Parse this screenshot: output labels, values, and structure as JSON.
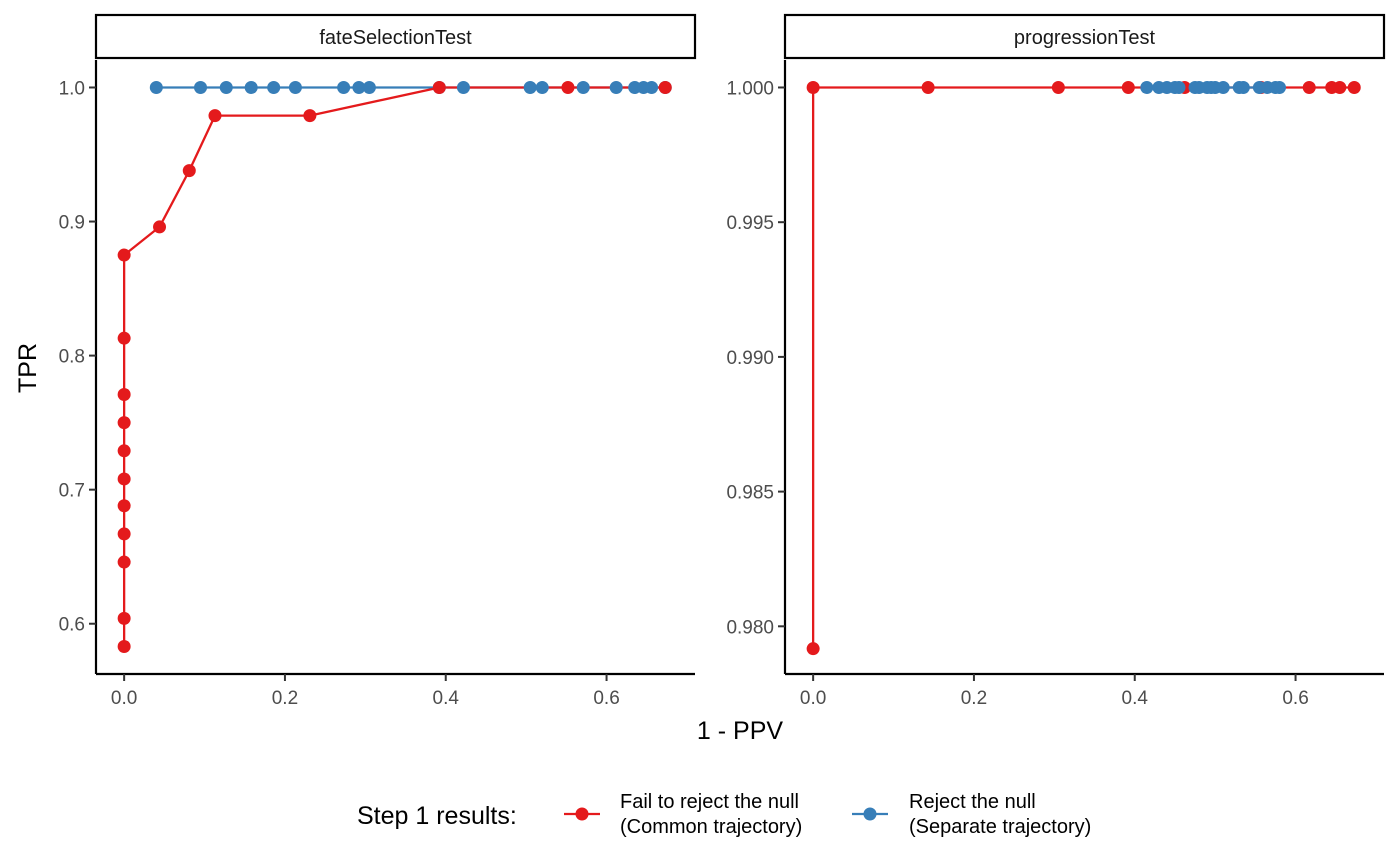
{
  "chart_data": [
    {
      "type": "line",
      "title": "fateSelectionTest",
      "xlabel": "1 - PPV",
      "ylabel": "TPR",
      "xlim": [
        -0.035,
        0.71
      ],
      "ylim": [
        0.5625,
        1.0205
      ],
      "x_ticks": [
        0.0,
        0.2,
        0.4,
        0.6
      ],
      "x_tick_labels": [
        "0.0",
        "0.2",
        "0.4",
        "0.6"
      ],
      "y_ticks": [
        0.6,
        0.7,
        0.8,
        0.9,
        1.0
      ],
      "y_tick_labels": [
        "0.6",
        "0.7",
        "0.8",
        "0.9",
        "1.0"
      ],
      "series": [
        {
          "name": "Fail to reject the null\n(Common trajectory)",
          "color": "#E41A1C",
          "points": [
            [
              0.0,
              0.583
            ],
            [
              0.0,
              0.604
            ],
            [
              0.0,
              0.646
            ],
            [
              0.0,
              0.667
            ],
            [
              0.0,
              0.688
            ],
            [
              0.0,
              0.708
            ],
            [
              0.0,
              0.729
            ],
            [
              0.0,
              0.75
            ],
            [
              0.0,
              0.771
            ],
            [
              0.0,
              0.813
            ],
            [
              0.0,
              0.875
            ],
            [
              0.044,
              0.896
            ],
            [
              0.081,
              0.938
            ],
            [
              0.113,
              0.979
            ],
            [
              0.231,
              0.979
            ],
            [
              0.392,
              1.0
            ],
            [
              0.552,
              1.0
            ],
            [
              0.673,
              1.0
            ]
          ]
        },
        {
          "name": "Reject the null\n(Separate trajectory)",
          "color": "#377EB8",
          "points": [
            [
              0.04,
              1.0
            ],
            [
              0.095,
              1.0
            ],
            [
              0.127,
              1.0
            ],
            [
              0.158,
              1.0
            ],
            [
              0.186,
              1.0
            ],
            [
              0.213,
              1.0
            ],
            [
              0.273,
              1.0
            ],
            [
              0.292,
              1.0
            ],
            [
              0.305,
              1.0
            ],
            [
              0.392,
              1.0
            ],
            [
              0.422,
              1.0
            ],
            [
              0.505,
              1.0
            ],
            [
              0.52,
              1.0
            ],
            [
              0.571,
              1.0
            ],
            [
              0.612,
              1.0
            ],
            [
              0.635,
              1.0
            ],
            [
              0.646,
              1.0
            ],
            [
              0.656,
              1.0
            ],
            [
              0.673,
              1.0
            ]
          ]
        }
      ]
    },
    {
      "type": "line",
      "title": "progressionTest",
      "xlabel": "1 - PPV",
      "ylabel": "TPR",
      "xlim": [
        -0.035,
        0.71
      ],
      "ylim": [
        0.97823,
        1.00102
      ],
      "x_ticks": [
        0.0,
        0.2,
        0.4,
        0.6
      ],
      "x_tick_labels": [
        "0.0",
        "0.2",
        "0.4",
        "0.6"
      ],
      "y_ticks": [
        0.98,
        0.985,
        0.99,
        0.995,
        1.0
      ],
      "y_tick_labels": [
        "0.980",
        "0.985",
        "0.990",
        "0.995",
        "1.000"
      ],
      "series": [
        {
          "name": "Fail to reject the null\n(Common trajectory)",
          "color": "#E41A1C",
          "points": [
            [
              0.0,
              0.97917
            ],
            [
              0.0,
              1.0
            ],
            [
              0.143,
              1.0
            ],
            [
              0.305,
              1.0
            ],
            [
              0.392,
              1.0
            ],
            [
              0.462,
              1.0
            ],
            [
              0.557,
              1.0
            ],
            [
              0.617,
              1.0
            ],
            [
              0.645,
              1.0
            ],
            [
              0.655,
              1.0
            ],
            [
              0.673,
              1.0
            ]
          ]
        },
        {
          "name": "Reject the null\n(Separate trajectory)",
          "color": "#377EB8",
          "points": [
            [
              0.415,
              1.0
            ],
            [
              0.43,
              1.0
            ],
            [
              0.44,
              1.0
            ],
            [
              0.45,
              1.0
            ],
            [
              0.455,
              1.0
            ],
            [
              0.475,
              1.0
            ],
            [
              0.48,
              1.0
            ],
            [
              0.49,
              1.0
            ],
            [
              0.495,
              1.0
            ],
            [
              0.5,
              1.0
            ],
            [
              0.51,
              1.0
            ],
            [
              0.53,
              1.0
            ],
            [
              0.535,
              1.0
            ],
            [
              0.555,
              1.0
            ],
            [
              0.565,
              1.0
            ],
            [
              0.575,
              1.0
            ],
            [
              0.58,
              1.0
            ]
          ]
        }
      ]
    }
  ],
  "legend": {
    "title": "Step 1 results:",
    "position": "bottom",
    "items": [
      {
        "line1": "Fail to reject the null",
        "line2": "(Common trajectory)",
        "color": "#E41A1C"
      },
      {
        "line1": "Reject the null",
        "line2": "(Separate trajectory)",
        "color": "#377EB8"
      }
    ]
  },
  "axis_titles": {
    "x": "1 - PPV",
    "y": "TPR"
  }
}
